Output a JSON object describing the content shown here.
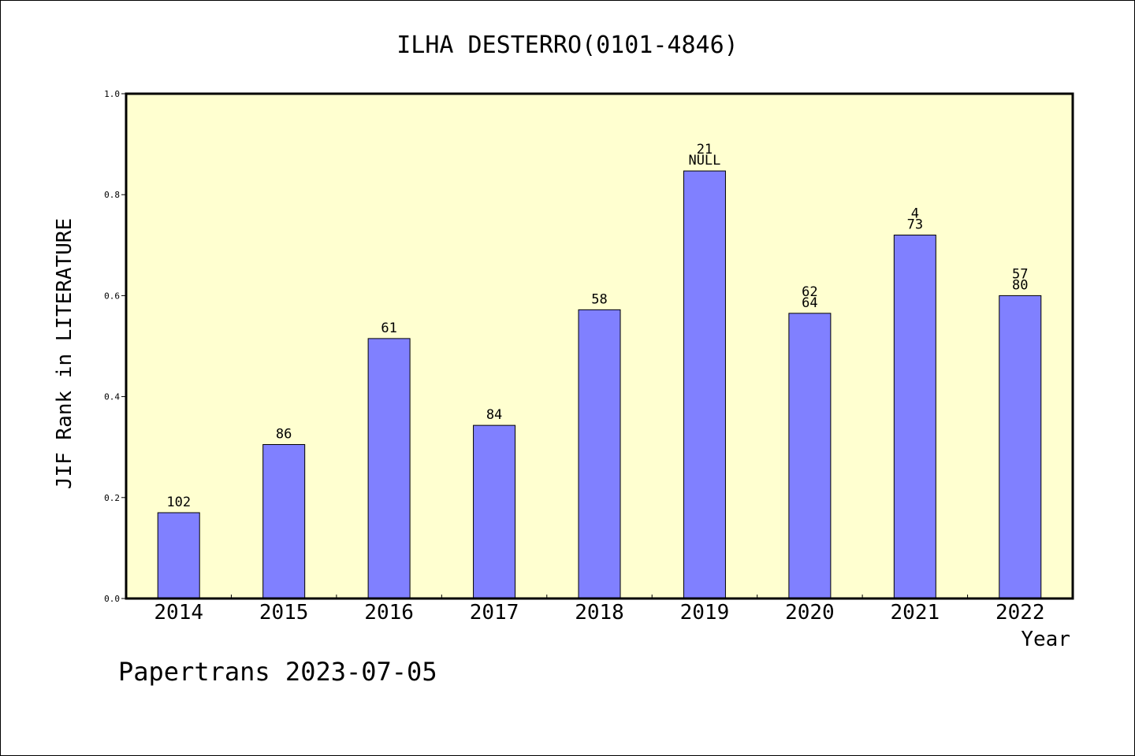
{
  "chart_data": {
    "type": "bar",
    "title": "ILHA DESTERRO(0101-4846)",
    "xlabel": "Year",
    "ylabel": "JIF Rank in LITERATURE",
    "footer": "Papertrans 2023-07-05",
    "ylim": [
      0,
      1.0
    ],
    "yticks": [
      "0.0",
      "0.2",
      "0.4",
      "0.6",
      "0.8",
      "1.0"
    ],
    "categories": [
      "2014",
      "2015",
      "2016",
      "2017",
      "2018",
      "2019",
      "2020",
      "2021",
      "2022"
    ],
    "values": [
      0.17,
      0.305,
      0.515,
      0.343,
      0.572,
      0.847,
      0.565,
      0.72,
      0.6
    ],
    "labels": [
      [
        "102"
      ],
      [
        "86"
      ],
      [
        "61"
      ],
      [
        "84"
      ],
      [
        "58"
      ],
      [
        "21",
        "NULL"
      ],
      [
        "62",
        "64"
      ],
      [
        "4",
        "73"
      ],
      [
        "57",
        "80"
      ]
    ],
    "colors": {
      "plot_background": "#ffffd0",
      "bar_fill": "#8080ff",
      "bar_stroke": "#000000"
    }
  }
}
